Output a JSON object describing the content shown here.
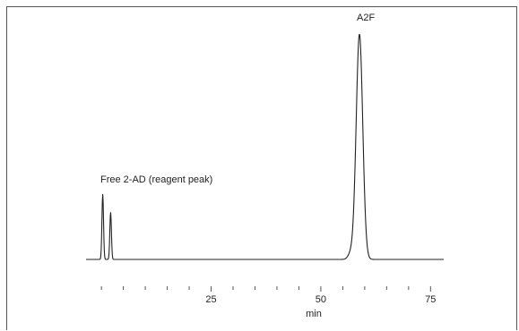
{
  "chart_data": {
    "type": "line",
    "title": "",
    "xlabel": "min",
    "ylabel": "",
    "xlim": [
      -3.5,
      78
    ],
    "x_ticks_major": [
      "25",
      "50",
      "75"
    ],
    "x_major_values": [
      25,
      50,
      75
    ],
    "x_minor_values": [
      0,
      5,
      10,
      15,
      20,
      30,
      35,
      40,
      45,
      55,
      60,
      65,
      70
    ],
    "grid": false,
    "legend": "none",
    "line_color": "#222222",
    "series": [
      {
        "peaks": [
          {
            "x": 0.3,
            "height": 0.29,
            "width": 0.18
          },
          {
            "x": 2.1,
            "height": 0.21,
            "width": 0.18
          },
          {
            "x": 56.8,
            "height": 0.025,
            "width": 0.6
          },
          {
            "x": 58.8,
            "height": 1.0,
            "width": 0.75
          }
        ]
      }
    ],
    "annotations": [
      {
        "text": "Free 2-AD (reagent peak)",
        "x": 0.3
      },
      {
        "text": "A2F",
        "x": 58.8
      }
    ]
  }
}
